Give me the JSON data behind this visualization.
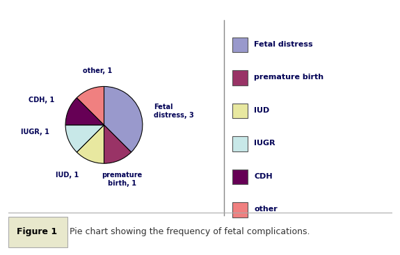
{
  "labels": [
    "Fetal distress",
    "premature birth",
    "IUD",
    "IUGR",
    "CDH",
    "other"
  ],
  "values": [
    3,
    1,
    1,
    1,
    1,
    1
  ],
  "colors": [
    "#9999cc",
    "#993366",
    "#e8e8a0",
    "#c8e8e8",
    "#660055",
    "#f08080"
  ],
  "legend_labels": [
    "Fetal distress",
    "premature birth",
    "IUD",
    "IUGR",
    "CDH",
    "other"
  ],
  "legend_colors": [
    "#9999cc",
    "#993366",
    "#e8e8a0",
    "#c8e8e8",
    "#660055",
    "#f08080"
  ],
  "figure_caption": "Pie chart showing the frequency of fetal complications.",
  "figure_label": "Figure 1",
  "outer_bg": "#ffffff",
  "pie_bg": "#cccccc",
  "border_color": "#88bb88",
  "caption_bg": "#e8e8cc"
}
